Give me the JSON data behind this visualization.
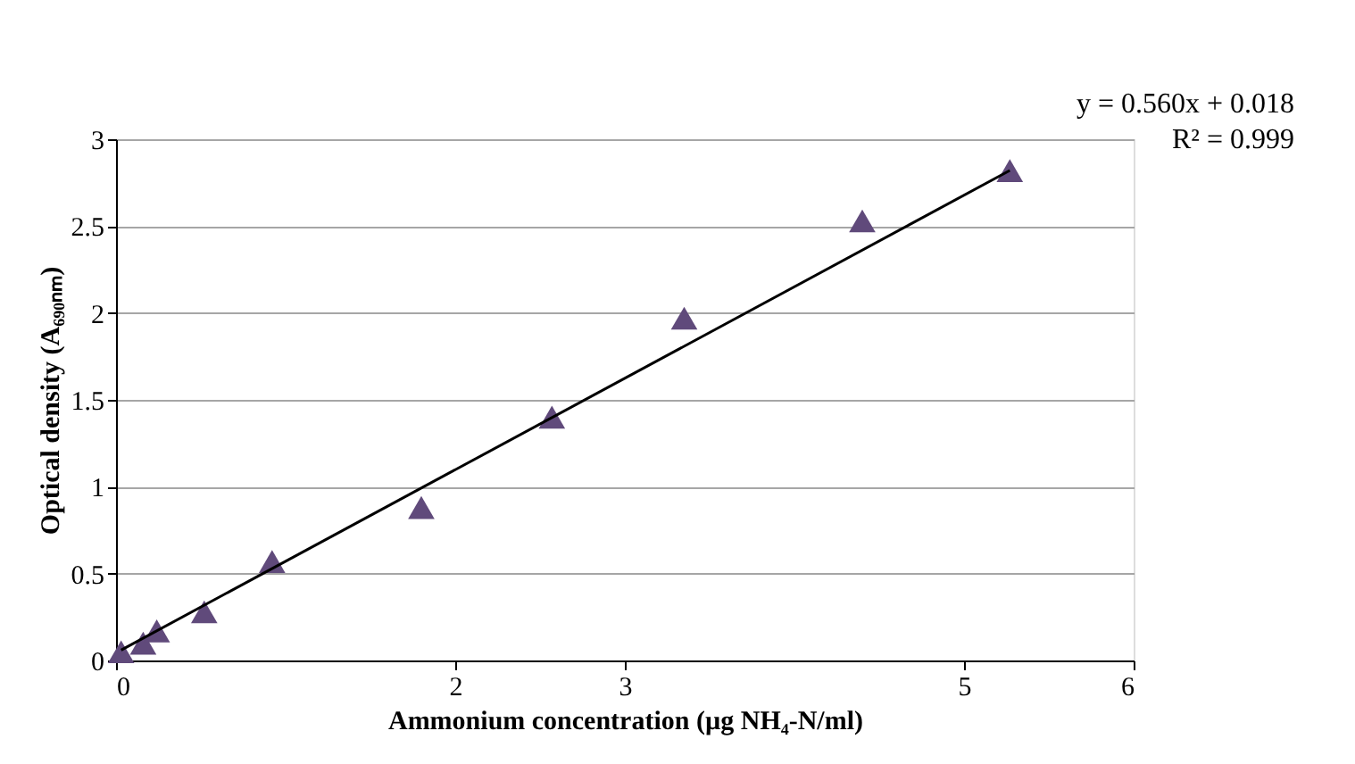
{
  "chart_data": {
    "type": "scatter",
    "xlabel": "Ammonium concentration (µg NH₄-N/ml)",
    "ylabel": "Optical density (A₆₉₀ₙₘ)",
    "x": [
      0.03,
      0.16,
      0.24,
      0.52,
      0.92,
      1.8,
      2.57,
      3.35,
      4.4,
      5.27
    ],
    "series": [
      {
        "marker": "triangle",
        "color": "#604a7b",
        "values": [
          0.05,
          0.1,
          0.17,
          0.28,
          0.57,
          0.88,
          1.4,
          1.97,
          2.53,
          2.82
        ]
      },
      {
        "type": "line",
        "marker": "none",
        "color": "#000000",
        "x": [
          0.03,
          5.27
        ],
        "values": [
          0.06,
          2.82
        ]
      }
    ],
    "annotations": [
      "y = 0.560x + 0.018",
      "R² = 0.999"
    ],
    "xlim": [
      0,
      6
    ],
    "ylim": [
      0,
      3
    ],
    "xticks": [
      0,
      2,
      3,
      5,
      6
    ],
    "yticks": [
      0,
      0.5,
      1,
      1.5,
      2,
      2.5,
      3
    ],
    "grid": "y"
  }
}
